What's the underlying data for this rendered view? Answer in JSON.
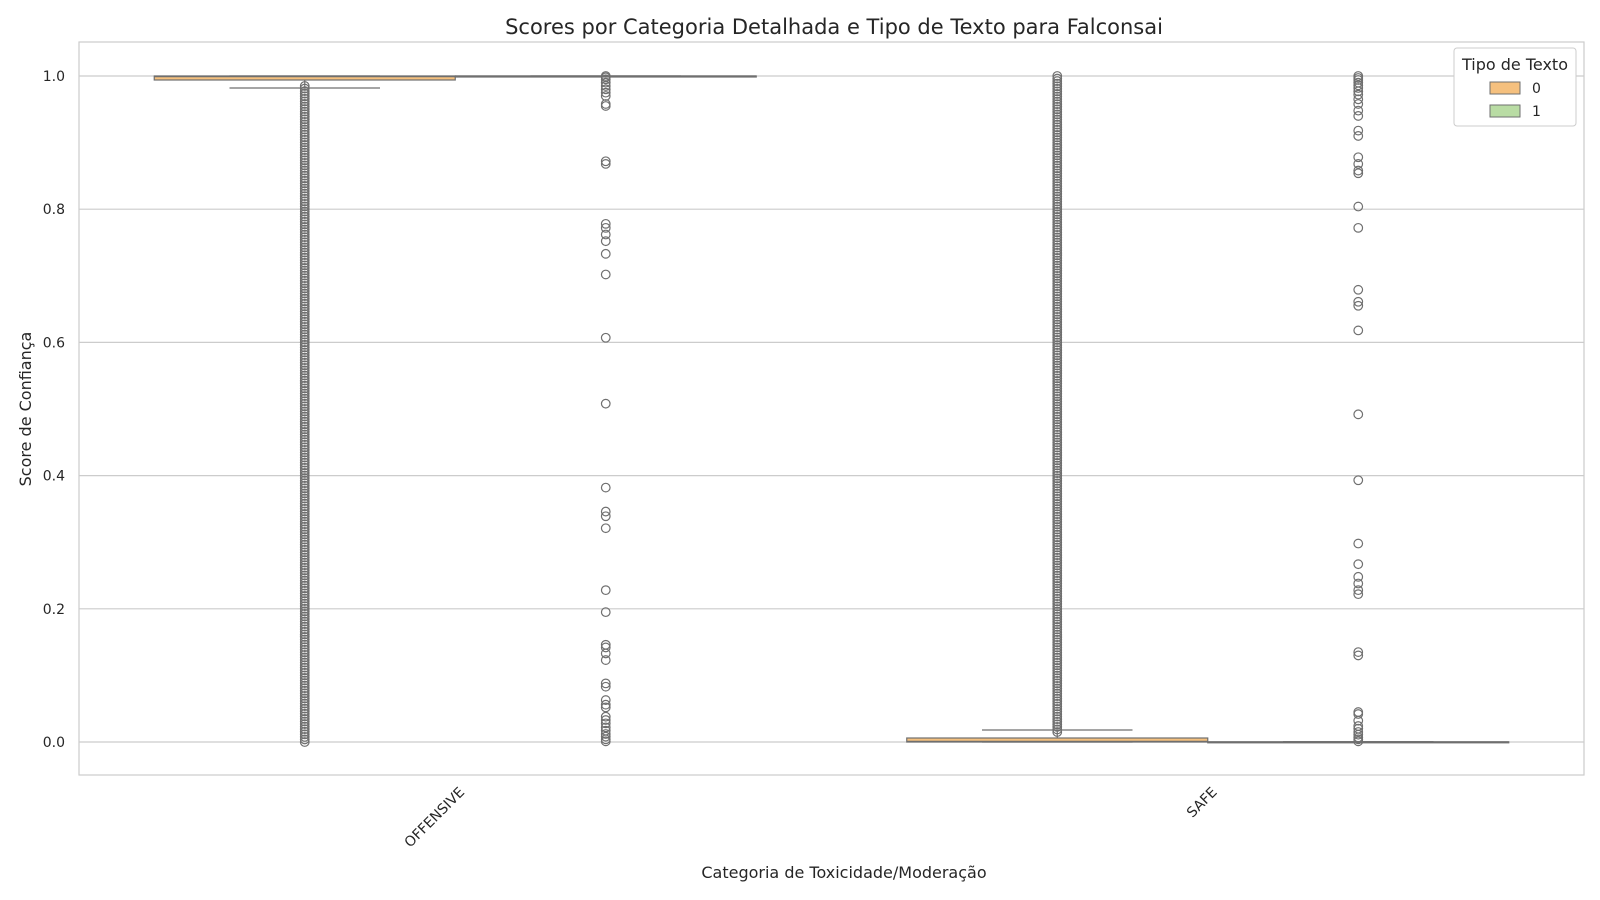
{
  "chart_data": {
    "type": "box",
    "title": "Scores por Categoria Detalhada e Tipo de Texto para Falconsai",
    "xlabel": "Categoria de Toxicidade/Moderação",
    "ylabel": "Score de Confiança",
    "categories": [
      "OFFENSIVE",
      "SAFE"
    ],
    "ylim": [
      -0.05,
      1.05
    ],
    "yticks": [
      0.0,
      0.2,
      0.4,
      0.6,
      0.8,
      1.0
    ],
    "ytick_labels": [
      "0.0",
      "0.2",
      "0.4",
      "0.6",
      "0.8",
      "1.0"
    ],
    "grid": "horizontal",
    "legend": {
      "title": "Tipo de Texto",
      "position": "top-right"
    },
    "series": [
      {
        "name": "0",
        "color": "#f5c07e",
        "boxes": [
          {
            "category": "OFFENSIVE",
            "q1": 0.994,
            "median": 0.999,
            "q3": 1.0,
            "whisker_low": 0.982,
            "whisker_high": 1.0,
            "outliers": {
              "range": [
                0.0,
                0.985
              ],
              "note": "dense"
            }
          },
          {
            "category": "SAFE",
            "q1": 0.0,
            "median": 0.001,
            "q3": 0.006,
            "whisker_low": 0.0,
            "whisker_high": 0.018,
            "outliers": {
              "range": [
                0.015,
                1.0
              ],
              "note": "dense"
            }
          }
        ]
      },
      {
        "name": "1",
        "color": "#b9dca4",
        "boxes": [
          {
            "category": "OFFENSIVE",
            "q1": 0.9999,
            "median": 1.0,
            "q3": 1.0,
            "whisker_low": 0.9995,
            "whisker_high": 1.0,
            "outliers": {
              "points": [
                1.0,
                0.998,
                0.995,
                0.99,
                0.985,
                0.98,
                0.975,
                0.97,
                0.958,
                0.955,
                0.872,
                0.868,
                0.778,
                0.772,
                0.762,
                0.752,
                0.733,
                0.702,
                0.607,
                0.508,
                0.382,
                0.346,
                0.339,
                0.321,
                0.228,
                0.195,
                0.146,
                0.142,
                0.133,
                0.123,
                0.088,
                0.083,
                0.063,
                0.056,
                0.052,
                0.038,
                0.033,
                0.028,
                0.022,
                0.017,
                0.012,
                0.008,
                0.004,
                0.001
              ]
            }
          },
          {
            "category": "SAFE",
            "q1": 0.0,
            "median": 0.0,
            "q3": 0.0003,
            "whisker_low": 0.0,
            "whisker_high": 0.0005,
            "outliers": {
              "points": [
                1.0,
                0.997,
                0.994,
                0.99,
                0.986,
                0.982,
                0.977,
                0.972,
                0.965,
                0.958,
                0.948,
                0.94,
                0.918,
                0.91,
                0.878,
                0.868,
                0.858,
                0.854,
                0.804,
                0.772,
                0.679,
                0.661,
                0.655,
                0.618,
                0.492,
                0.393,
                0.298,
                0.267,
                0.248,
                0.238,
                0.228,
                0.222,
                0.135,
                0.13,
                0.045,
                0.042,
                0.032,
                0.024,
                0.02,
                0.015,
                0.011,
                0.007,
                0.004,
                0.001
              ]
            }
          }
        ]
      }
    ]
  }
}
